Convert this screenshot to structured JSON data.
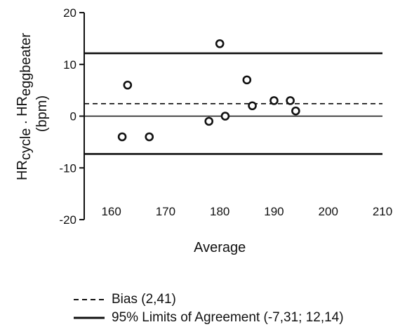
{
  "chart_data": {
    "type": "scatter",
    "title": "",
    "ylabel": {
      "main1": "HR",
      "sub1": "cycle",
      "sep": " . ",
      "main2": "HR",
      "sub2": "eggbeater",
      "unit": "(bpm)"
    },
    "xlabel": "Average",
    "xlim": [
      155,
      210
    ],
    "ylim": [
      -20,
      20
    ],
    "xticks": [
      160,
      170,
      180,
      190,
      200,
      210
    ],
    "yticks": [
      20,
      10,
      0,
      -10,
      -20
    ],
    "points": [
      {
        "x": 162,
        "y": -4
      },
      {
        "x": 163,
        "y": 6
      },
      {
        "x": 167,
        "y": -4
      },
      {
        "x": 178,
        "y": -1
      },
      {
        "x": 180,
        "y": 14
      },
      {
        "x": 181,
        "y": 0
      },
      {
        "x": 185,
        "y": 7
      },
      {
        "x": 186,
        "y": 2
      },
      {
        "x": 190,
        "y": 3
      },
      {
        "x": 193,
        "y": 3
      },
      {
        "x": 194,
        "y": 1
      }
    ],
    "zero_line": 0,
    "bias": 2.41,
    "limits": [
      -7.31,
      12.14
    ],
    "legend": {
      "bias_label": "Bias  (2,41)",
      "limits_label": "95% Limits of Agreement (-7,31; 12,14)"
    },
    "colors": {
      "ink": "#111111",
      "marker_fill": "#ffffff"
    }
  }
}
